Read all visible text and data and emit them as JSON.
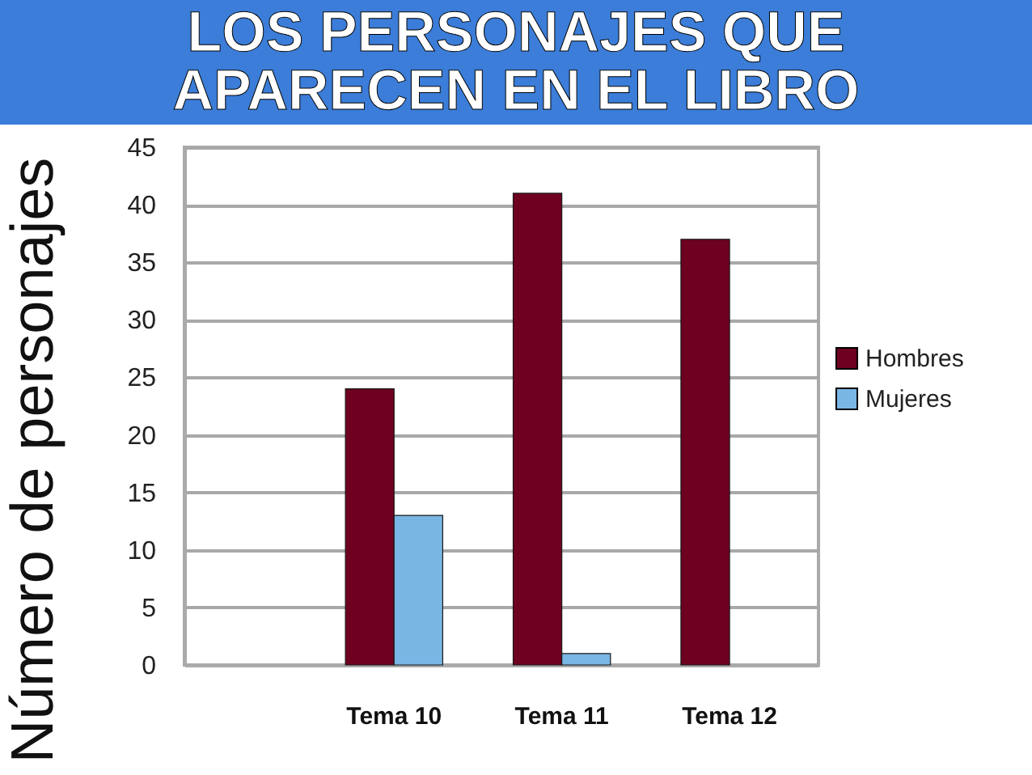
{
  "chart_data": {
    "type": "bar",
    "title": "LOS PERSONAJES QUE APARECEN EN EL LIBRO",
    "ylabel": "Número de personajes",
    "categories": [
      "Tema 10",
      "Tema 11",
      "Tema 12"
    ],
    "series": [
      {
        "name": "Hombres",
        "color": "#6e0020",
        "values": [
          24,
          41,
          37
        ]
      },
      {
        "name": "Mujeres",
        "color": "#7ab6e4",
        "values": [
          13,
          1,
          null
        ]
      }
    ],
    "ylim": [
      0,
      45
    ],
    "yticks": [
      0,
      5,
      10,
      15,
      20,
      25,
      30,
      35,
      40,
      45
    ],
    "grid": "y",
    "legend": "right"
  }
}
